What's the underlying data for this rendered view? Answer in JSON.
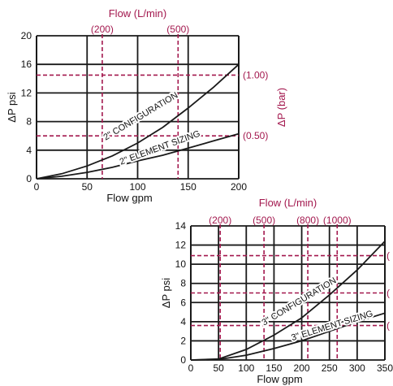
{
  "colors": {
    "grid": "#1a1a1a",
    "metric": "#a3184e",
    "curve": "#1a1a1a",
    "curve_label_bg": "#ffffff"
  },
  "chart_data": [
    {
      "type": "line",
      "title": "",
      "xlabel": "Flow gpm",
      "ylabel": "ΔP psi",
      "top_axis_title": "Flow (L/min)",
      "right_axis_title": "ΔP (bar)",
      "xlim": [
        0,
        200
      ],
      "ylim": [
        0,
        20
      ],
      "x_ticks": [
        0,
        50,
        100,
        150,
        200
      ],
      "y_ticks": [
        0,
        4,
        8,
        12,
        16,
        20
      ],
      "grid": true,
      "metric_ref_x": [
        {
          "label": "(200)",
          "x_gpm": 65
        },
        {
          "label": "(500)",
          "x_gpm": 140
        }
      ],
      "metric_ref_y": [
        {
          "label": "(1.00)",
          "y_psi": 14.5
        },
        {
          "label": "(0.50)",
          "y_psi": 6
        }
      ],
      "series": [
        {
          "name": "2\" CONFIGURATION",
          "x": [
            0,
            25,
            50,
            75,
            100,
            125,
            150,
            175,
            200
          ],
          "y": [
            0,
            0.7,
            1.8,
            3.2,
            5.0,
            7.2,
            9.9,
            12.8,
            16.0
          ]
        },
        {
          "name": "2\" ELEMENT SIZING",
          "x": [
            0,
            25,
            50,
            75,
            100,
            125,
            150,
            175,
            200
          ],
          "y": [
            0,
            0.35,
            0.9,
            1.6,
            2.5,
            3.3,
            4.3,
            5.3,
            6.3
          ]
        }
      ]
    },
    {
      "type": "line",
      "title": "",
      "xlabel": "Flow gpm",
      "ylabel": "ΔP psi",
      "top_axis_title": "Flow (L/min)",
      "xlim": [
        0,
        350
      ],
      "ylim": [
        0,
        14
      ],
      "x_ticks": [
        0,
        50,
        100,
        150,
        200,
        250,
        300,
        350
      ],
      "y_ticks": [
        0,
        2,
        4,
        6,
        8,
        10,
        12,
        14
      ],
      "grid": true,
      "metric_ref_x": [
        {
          "label": "(200)",
          "x_gpm": 53
        },
        {
          "label": "(500)",
          "x_gpm": 132
        },
        {
          "label": "(800)",
          "x_gpm": 211
        },
        {
          "label": "(1000)",
          "x_gpm": 264
        }
      ],
      "metric_ref_y": [
        {
          "label": "(",
          "y_psi": 10.9
        },
        {
          "label": "(",
          "y_psi": 7.0
        },
        {
          "label": "(",
          "y_psi": 3.6
        }
      ],
      "series": [
        {
          "name": "3\" CONFIGURATION",
          "x": [
            0,
            50,
            100,
            150,
            200,
            250,
            300,
            350
          ],
          "y": [
            0,
            0.1,
            1.1,
            2.6,
            4.4,
            6.8,
            9.4,
            12.4
          ]
        },
        {
          "name": "3\" ELEMENT SIZING",
          "x": [
            0,
            50,
            100,
            150,
            200,
            250,
            300,
            350
          ],
          "y": [
            0,
            0.05,
            0.5,
            1.2,
            2.0,
            3.0,
            4.0,
            4.9
          ]
        }
      ]
    }
  ]
}
